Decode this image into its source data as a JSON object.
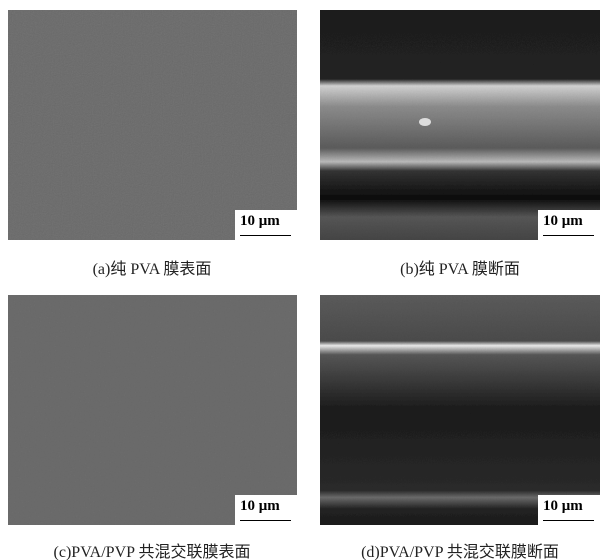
{
  "panels": [
    {
      "caption": "(a)纯 PVA 膜表面",
      "scale": "10 μm"
    },
    {
      "caption": "(b)纯 PVA 膜断面",
      "scale": "10 μm"
    },
    {
      "caption": "(c)PVA/PVP 共混交联膜表面",
      "scale": "10 μm"
    },
    {
      "caption": "(d)PVA/PVP 共混交联膜断面",
      "scale": "10 μm"
    }
  ]
}
